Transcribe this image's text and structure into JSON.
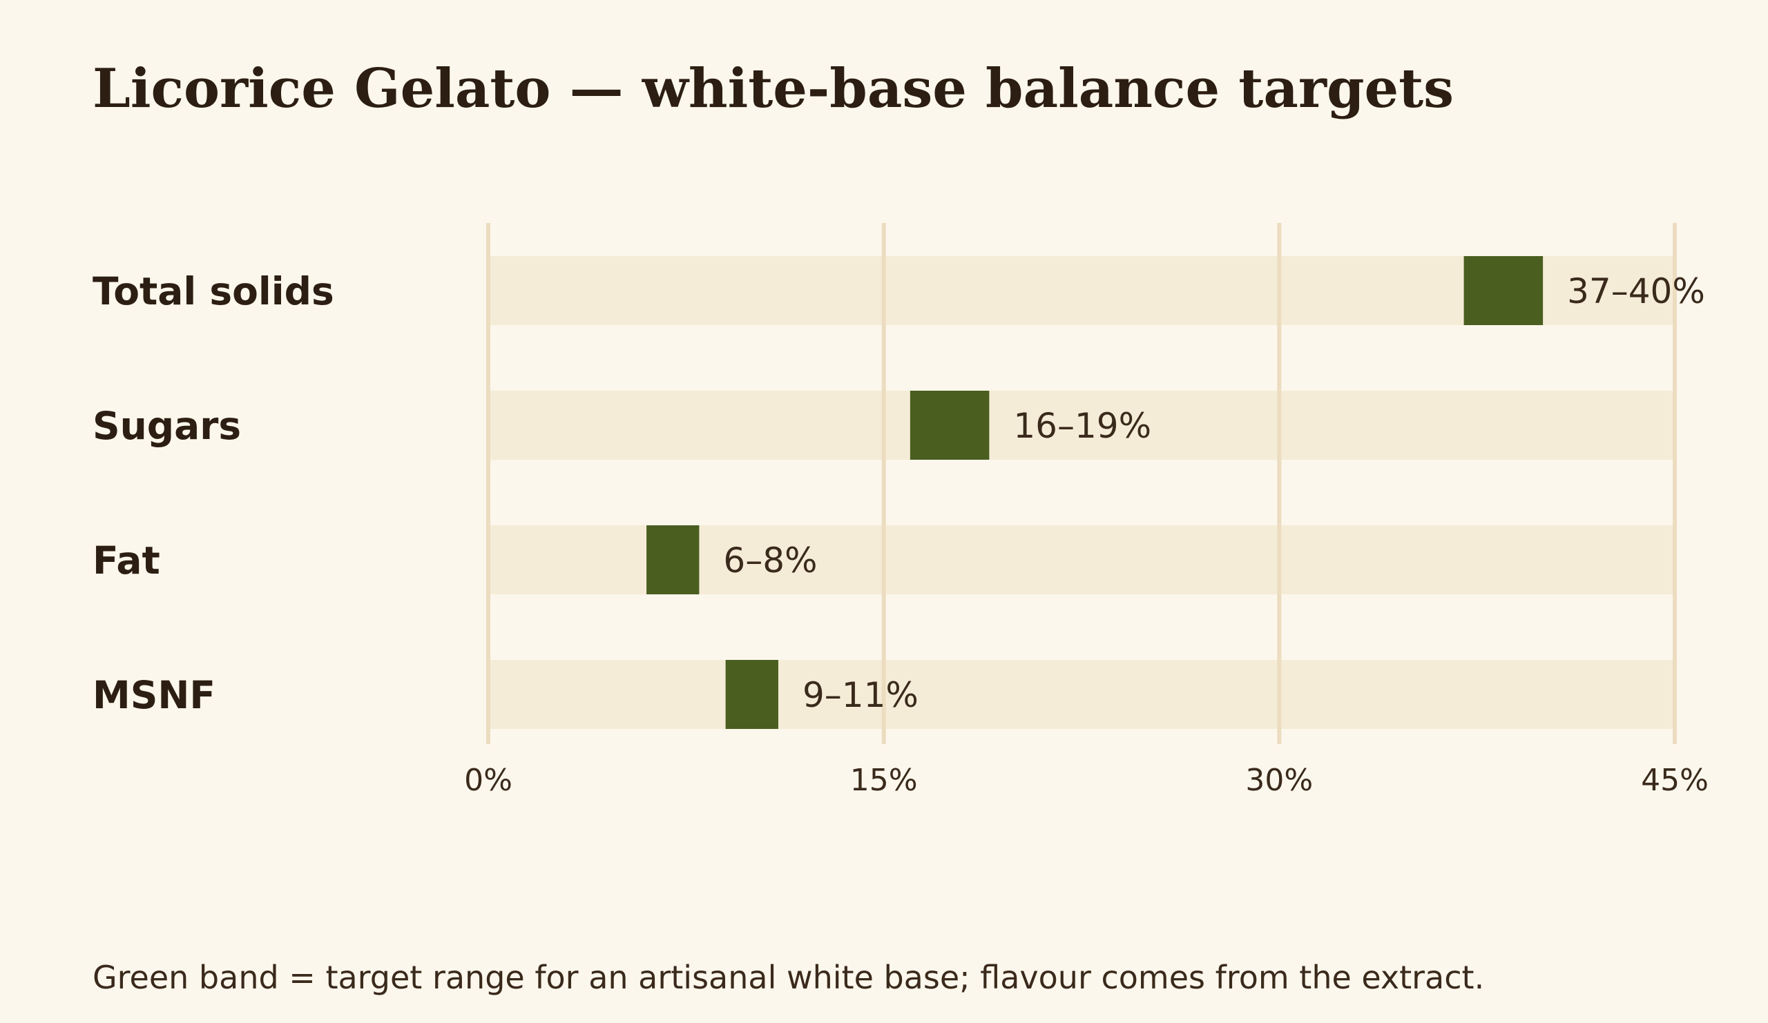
{
  "chart_data": {
    "type": "bar",
    "subtype": "range",
    "orientation": "horizontal",
    "title": "Licorice Gelato — white-base balance targets",
    "caption": "Green band = target range for an artisanal white base; flavour comes from the extract.",
    "xlabel": "",
    "ylabel": "",
    "xlim": [
      0,
      45
    ],
    "xticks": [
      0,
      15,
      30,
      45
    ],
    "xtick_labels": [
      "0%",
      "15%",
      "30%",
      "45%"
    ],
    "grid": true,
    "categories": [
      "Total solids",
      "Sugars",
      "Fat",
      "MSNF"
    ],
    "ranges": [
      {
        "low": 37,
        "high": 40,
        "label": "37–40%"
      },
      {
        "low": 16,
        "high": 19,
        "label": "16–19%"
      },
      {
        "low": 6,
        "high": 8,
        "label": "6–8%"
      },
      {
        "low": 9,
        "high": 11,
        "label": "9–11%"
      }
    ],
    "colors": {
      "background": "#fcf7ec",
      "track": "#f5ecd7",
      "band": "#4a5e20",
      "grid": "#ecdcc0",
      "text": "#2c1e12",
      "muted_text": "#3a2a1c"
    }
  }
}
